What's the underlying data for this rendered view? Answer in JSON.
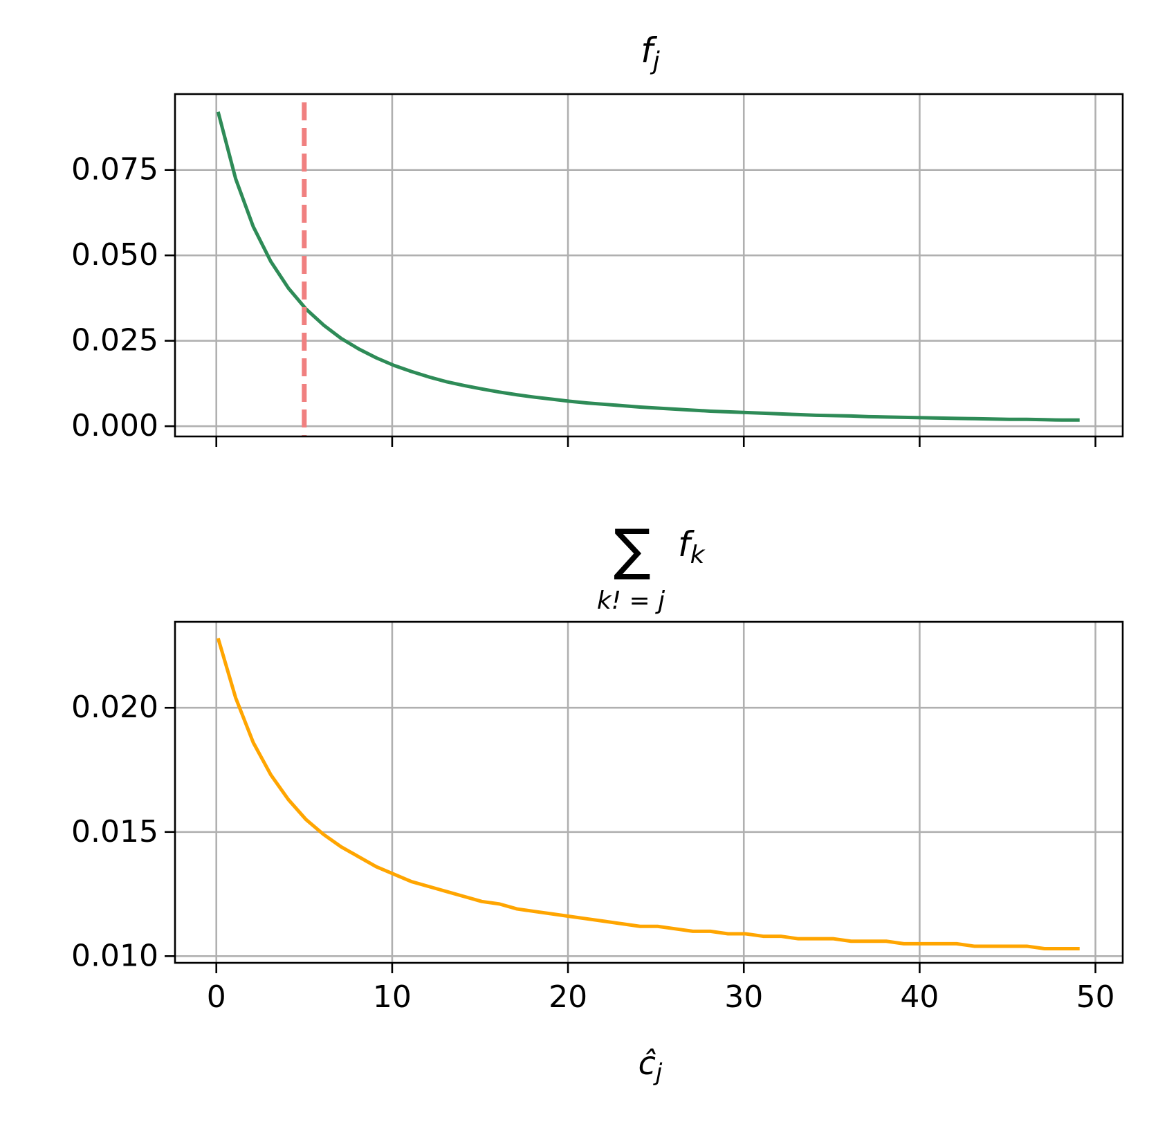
{
  "chart_data": [
    {
      "type": "line",
      "title": {
        "main": "f",
        "sub": "j"
      },
      "x": [
        0.1,
        1.1,
        2.1,
        3.1,
        4.1,
        5.1,
        6.1,
        7.1,
        8.1,
        9.1,
        10.1,
        11.1,
        12.1,
        13.1,
        14.1,
        15.1,
        16.1,
        17.1,
        18.1,
        19.1,
        20.1,
        21.1,
        22.1,
        23.1,
        24.1,
        25.1,
        26.1,
        27.1,
        28.1,
        29.1,
        30.1,
        31.1,
        32.1,
        33.1,
        34.1,
        35.1,
        36.1,
        37.1,
        38.1,
        39.1,
        40.1,
        41.1,
        42.1,
        43.1,
        44.1,
        45.1,
        46.1,
        47.1,
        48.1,
        49.1
      ],
      "series": [
        {
          "color": "#2e8b57",
          "values": [
            0.092,
            0.0724,
            0.0584,
            0.0482,
            0.0404,
            0.0343,
            0.0296,
            0.0257,
            0.0226,
            0.02,
            0.0178,
            0.016,
            0.0144,
            0.013,
            0.0119,
            0.0109,
            0.01,
            0.0092,
            0.0085,
            0.0079,
            0.0073,
            0.0068,
            0.0064,
            0.006,
            0.0056,
            0.0053,
            0.005,
            0.0047,
            0.0044,
            0.0042,
            0.004,
            0.0038,
            0.0036,
            0.0034,
            0.0032,
            0.0031,
            0.003,
            0.0028,
            0.0027,
            0.0026,
            0.0025,
            0.0024,
            0.0023,
            0.0022,
            0.0021,
            0.002,
            0.002,
            0.0019,
            0.0018,
            0.0018
          ]
        }
      ],
      "vlines": [
        {
          "x": 5,
          "color": "#f08080"
        }
      ],
      "xlim": [
        -2.35,
        51.55
      ],
      "xticks": [
        0,
        10,
        20,
        30,
        40,
        50
      ],
      "ylim": [
        -0.003,
        0.0972
      ],
      "yticks": [
        {
          "value": 0,
          "label": "0.000"
        },
        0.025,
        {
          "value": 0.05,
          "label": "0.050"
        },
        0.075
      ],
      "grid": true
    },
    {
      "type": "line",
      "title": {
        "symbol": "∑",
        "under": "k! = j",
        "main": "f",
        "sub": "k"
      },
      "xlabel": {
        "main": "ĉ",
        "sub": "j"
      },
      "x": [
        0.1,
        1.1,
        2.1,
        3.1,
        4.1,
        5.1,
        6.1,
        7.1,
        8.1,
        9.1,
        10.1,
        11.1,
        12.1,
        13.1,
        14.1,
        15.1,
        16.1,
        17.1,
        18.1,
        19.1,
        20.1,
        21.1,
        22.1,
        23.1,
        24.1,
        25.1,
        26.1,
        27.1,
        28.1,
        29.1,
        30.1,
        31.1,
        32.1,
        33.1,
        34.1,
        35.1,
        36.1,
        37.1,
        38.1,
        39.1,
        40.1,
        41.1,
        42.1,
        43.1,
        44.1,
        45.1,
        46.1,
        47.1,
        48.1,
        49.1
      ],
      "series": [
        {
          "color": "#ffa500",
          "values": [
            0.0228,
            0.0204,
            0.0186,
            0.0173,
            0.0163,
            0.0155,
            0.0149,
            0.0144,
            0.014,
            0.0136,
            0.0133,
            0.013,
            0.0128,
            0.0126,
            0.0124,
            0.0122,
            0.0121,
            0.0119,
            0.0118,
            0.0117,
            0.0116,
            0.0115,
            0.0114,
            0.0113,
            0.0112,
            0.0112,
            0.0111,
            0.011,
            0.011,
            0.0109,
            0.0109,
            0.0108,
            0.0108,
            0.0107,
            0.0107,
            0.0107,
            0.0106,
            0.0106,
            0.0106,
            0.0105,
            0.0105,
            0.0105,
            0.0105,
            0.0104,
            0.0104,
            0.0104,
            0.0104,
            0.0103,
            0.0103,
            0.0103
          ]
        }
      ],
      "xlim": [
        -2.35,
        51.55
      ],
      "xticks": [
        0,
        10,
        20,
        30,
        40,
        50
      ],
      "ylim": [
        0.00973,
        0.02346
      ],
      "yticks": [
        {
          "value": 0.01,
          "label": "0.010"
        },
        0.015,
        {
          "value": 0.02,
          "label": "0.020"
        }
      ],
      "grid": true
    }
  ]
}
